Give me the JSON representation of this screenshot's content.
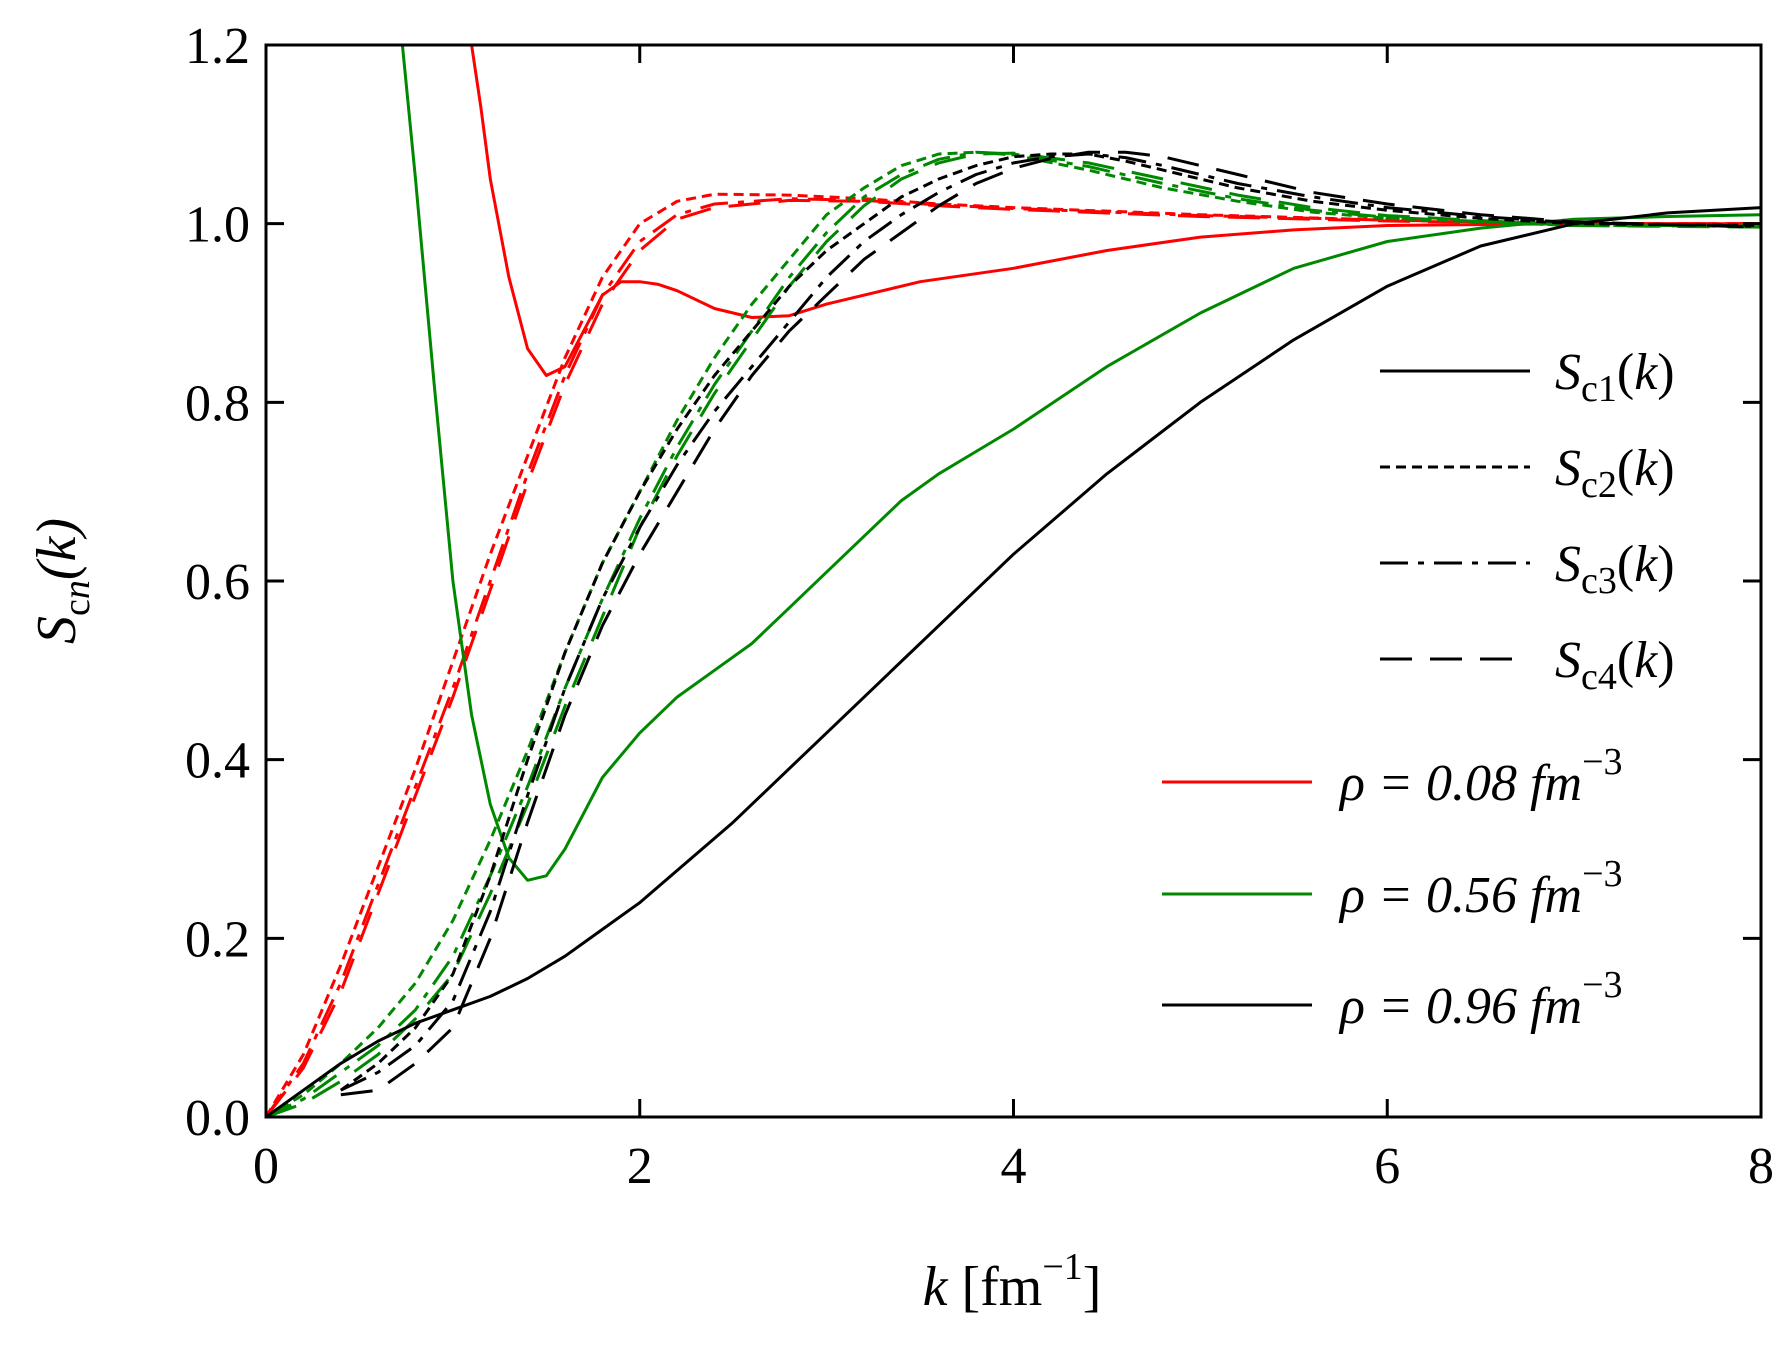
{
  "chart_data": {
    "type": "line",
    "xlim": [
      0,
      8
    ],
    "ylim": [
      0,
      1.2
    ],
    "x_ticks": [
      0,
      2,
      4,
      6,
      8
    ],
    "y_ticks": [
      0.0,
      0.2,
      0.4,
      0.6,
      0.8,
      1.0,
      1.2
    ],
    "x_tick_labels": [
      "0",
      "2",
      "4",
      "6",
      "8"
    ],
    "y_tick_labels": [
      "0.0",
      "0.2",
      "0.4",
      "0.6",
      "0.8",
      "1.0",
      "1.2"
    ],
    "xlabel": {
      "var": "k",
      "open": "[fm",
      "exp": "−1",
      "close": "]"
    },
    "ylabel": {
      "var": "S",
      "sub_roman": "c",
      "sub_italic": "n",
      "arg": "(k)"
    },
    "grid": false,
    "legend_position": "right",
    "legend": {
      "styles": [
        {
          "name": "Sc1(k)",
          "sub": "c1",
          "dash": "solid"
        },
        {
          "name": "Sc2(k)",
          "sub": "c2",
          "dash": "dot"
        },
        {
          "name": "Sc3(k)",
          "sub": "c3",
          "dash": "dashdot"
        },
        {
          "name": "Sc4(k)",
          "sub": "c4",
          "dash": "dash"
        }
      ],
      "densities": [
        {
          "label": "ρ = 0.08 fm",
          "exp": "−3",
          "color": "#ff0000"
        },
        {
          "label": "ρ = 0.56 fm",
          "exp": "−3",
          "color": "#008800"
        },
        {
          "label": "ρ = 0.96 fm",
          "exp": "−3",
          "color": "#000000"
        }
      ]
    },
    "series": [
      {
        "name": "Sc1 ρ=0.08",
        "color": "#ff0000",
        "dash": "solid",
        "x": [
          1.1,
          1.15,
          1.2,
          1.3,
          1.4,
          1.5,
          1.6,
          1.7,
          1.8,
          1.9,
          2.0,
          2.1,
          2.2,
          2.4,
          2.6,
          2.8,
          3.0,
          3.5,
          4.0,
          4.5,
          5.0,
          5.5,
          6.0,
          7.0,
          8.0
        ],
        "y": [
          1.2,
          1.13,
          1.05,
          0.94,
          0.86,
          0.83,
          0.84,
          0.88,
          0.92,
          0.935,
          0.935,
          0.932,
          0.925,
          0.905,
          0.895,
          0.897,
          0.91,
          0.935,
          0.95,
          0.97,
          0.985,
          0.993,
          0.998,
          1.0,
          1.0
        ]
      },
      {
        "name": "Sc2 ρ=0.08",
        "color": "#ff0000",
        "dash": "dot",
        "x": [
          0,
          0.2,
          0.4,
          0.6,
          0.8,
          1.0,
          1.2,
          1.4,
          1.6,
          1.8,
          2.0,
          2.2,
          2.4,
          2.8,
          3.2,
          3.6,
          4.0,
          5.0,
          6.0,
          7.0,
          8.0
        ],
        "y": [
          0,
          0.07,
          0.17,
          0.28,
          0.39,
          0.51,
          0.63,
          0.74,
          0.85,
          0.94,
          1.0,
          1.025,
          1.033,
          1.032,
          1.028,
          1.022,
          1.018,
          1.01,
          1.004,
          1.0,
          1.0
        ]
      },
      {
        "name": "Sc3 ρ=0.08",
        "color": "#ff0000",
        "dash": "dashdot",
        "x": [
          0,
          0.2,
          0.4,
          0.6,
          0.8,
          1.0,
          1.2,
          1.4,
          1.6,
          1.8,
          2.0,
          2.2,
          2.4,
          2.8,
          3.2,
          3.6,
          4.0,
          5.0,
          6.0,
          7.0,
          8.0
        ],
        "y": [
          0,
          0.06,
          0.15,
          0.26,
          0.37,
          0.48,
          0.6,
          0.72,
          0.83,
          0.92,
          0.98,
          1.01,
          1.022,
          1.028,
          1.026,
          1.021,
          1.017,
          1.009,
          1.004,
          1.0,
          1.0
        ]
      },
      {
        "name": "Sc4 ρ=0.08",
        "color": "#ff0000",
        "dash": "dash",
        "x": [
          0,
          0.2,
          0.4,
          0.6,
          0.8,
          1.0,
          1.2,
          1.4,
          1.6,
          1.8,
          2.0,
          2.2,
          2.4,
          2.8,
          3.2,
          3.6,
          4.0,
          5.0,
          6.0,
          7.0,
          8.0
        ],
        "y": [
          0,
          0.055,
          0.14,
          0.25,
          0.36,
          0.47,
          0.59,
          0.71,
          0.82,
          0.91,
          0.97,
          1.005,
          1.018,
          1.026,
          1.025,
          1.02,
          1.016,
          1.008,
          1.003,
          1.0,
          1.0
        ]
      },
      {
        "name": "Sc1 ρ=0.56",
        "color": "#008800",
        "dash": "solid",
        "x": [
          0.73,
          0.8,
          0.9,
          1.0,
          1.1,
          1.2,
          1.3,
          1.4,
          1.5,
          1.6,
          1.7,
          1.8,
          2.0,
          2.2,
          2.4,
          2.6,
          2.8,
          3.0,
          3.2,
          3.4,
          3.6,
          3.8,
          4.0,
          4.5,
          5.0,
          5.5,
          6.0,
          6.5,
          7.0,
          7.5,
          8.0
        ],
        "y": [
          1.2,
          1.05,
          0.82,
          0.6,
          0.45,
          0.35,
          0.29,
          0.265,
          0.27,
          0.3,
          0.34,
          0.38,
          0.43,
          0.47,
          0.5,
          0.53,
          0.57,
          0.61,
          0.65,
          0.69,
          0.72,
          0.745,
          0.77,
          0.84,
          0.9,
          0.95,
          0.98,
          0.995,
          1.005,
          1.008,
          1.01
        ]
      },
      {
        "name": "Sc2 ρ=0.56",
        "color": "#008800",
        "dash": "dot",
        "x": [
          0,
          0.2,
          0.4,
          0.6,
          0.8,
          1.0,
          1.2,
          1.4,
          1.6,
          1.8,
          2.0,
          2.2,
          2.4,
          2.6,
          2.8,
          3.0,
          3.2,
          3.4,
          3.6,
          3.8,
          4.0,
          4.4,
          4.8,
          5.2,
          5.6,
          6.0,
          7.0,
          8.0
        ],
        "y": [
          0,
          0.025,
          0.06,
          0.1,
          0.15,
          0.22,
          0.31,
          0.41,
          0.52,
          0.62,
          0.7,
          0.78,
          0.85,
          0.91,
          0.96,
          1.01,
          1.04,
          1.065,
          1.078,
          1.08,
          1.077,
          1.06,
          1.04,
          1.025,
          1.013,
          1.006,
          0.998,
          0.998
        ]
      },
      {
        "name": "Sc3 ρ=0.56",
        "color": "#008800",
        "dash": "dashdot",
        "x": [
          0,
          0.2,
          0.4,
          0.6,
          0.8,
          1.0,
          1.2,
          1.4,
          1.6,
          1.8,
          2.0,
          2.2,
          2.4,
          2.6,
          2.8,
          3.0,
          3.2,
          3.4,
          3.6,
          3.8,
          4.0,
          4.4,
          4.8,
          5.2,
          5.6,
          6.0,
          7.0,
          8.0
        ],
        "y": [
          0,
          0.02,
          0.05,
          0.08,
          0.12,
          0.18,
          0.27,
          0.37,
          0.48,
          0.58,
          0.67,
          0.75,
          0.82,
          0.88,
          0.94,
          0.99,
          1.03,
          1.055,
          1.072,
          1.08,
          1.078,
          1.064,
          1.045,
          1.028,
          1.015,
          1.007,
          0.998,
          0.997
        ]
      },
      {
        "name": "Sc4 ρ=0.56",
        "color": "#008800",
        "dash": "dash",
        "x": [
          0,
          0.2,
          0.4,
          0.6,
          0.8,
          1.0,
          1.2,
          1.4,
          1.6,
          1.8,
          2.0,
          2.2,
          2.4,
          2.6,
          2.8,
          3.0,
          3.2,
          3.4,
          3.6,
          3.8,
          4.0,
          4.4,
          4.8,
          5.2,
          5.6,
          6.0,
          7.0,
          8.0
        ],
        "y": [
          0,
          0.015,
          0.04,
          0.07,
          0.11,
          0.16,
          0.25,
          0.35,
          0.46,
          0.56,
          0.66,
          0.74,
          0.81,
          0.87,
          0.93,
          0.98,
          1.02,
          1.05,
          1.068,
          1.078,
          1.079,
          1.068,
          1.05,
          1.032,
          1.018,
          1.009,
          0.998,
          0.996
        ]
      },
      {
        "name": "Sc1 ρ=0.96",
        "color": "#000000",
        "dash": "solid",
        "x": [
          0,
          0.2,
          0.4,
          0.6,
          0.8,
          1.0,
          1.2,
          1.4,
          1.6,
          1.8,
          2.0,
          2.5,
          3.0,
          3.5,
          4.0,
          4.5,
          5.0,
          5.5,
          6.0,
          6.5,
          7.0,
          7.5,
          8.0
        ],
        "y": [
          0,
          0.03,
          0.06,
          0.085,
          0.105,
          0.12,
          0.135,
          0.155,
          0.18,
          0.21,
          0.24,
          0.33,
          0.43,
          0.53,
          0.63,
          0.72,
          0.8,
          0.87,
          0.93,
          0.975,
          1.0,
          1.012,
          1.018
        ]
      },
      {
        "name": "Sc2 ρ=0.96",
        "color": "#000000",
        "dash": "dot",
        "x": [
          0.4,
          0.6,
          0.8,
          1.0,
          1.2,
          1.4,
          1.6,
          1.8,
          2.0,
          2.2,
          2.4,
          2.6,
          2.8,
          3.0,
          3.2,
          3.4,
          3.6,
          3.8,
          4.0,
          4.2,
          4.4,
          4.6,
          4.8,
          5.2,
          5.6,
          6.0,
          6.5,
          7.0,
          8.0
        ],
        "y": [
          0.03,
          0.06,
          0.1,
          0.16,
          0.27,
          0.4,
          0.52,
          0.62,
          0.7,
          0.77,
          0.83,
          0.88,
          0.93,
          0.97,
          1.0,
          1.03,
          1.05,
          1.065,
          1.075,
          1.078,
          1.078,
          1.07,
          1.06,
          1.04,
          1.025,
          1.015,
          1.006,
          1.0,
          0.998
        ]
      },
      {
        "name": "Sc3 ρ=0.96",
        "color": "#000000",
        "dash": "dashdot",
        "x": [
          0.4,
          0.6,
          0.8,
          1.0,
          1.2,
          1.4,
          1.6,
          1.8,
          2.0,
          2.2,
          2.4,
          2.6,
          2.8,
          3.0,
          3.2,
          3.4,
          3.6,
          3.8,
          4.0,
          4.2,
          4.4,
          4.6,
          4.8,
          5.2,
          5.6,
          6.0,
          6.5,
          7.0,
          8.0
        ],
        "y": [
          0.03,
          0.05,
          0.08,
          0.13,
          0.23,
          0.36,
          0.48,
          0.58,
          0.66,
          0.73,
          0.79,
          0.84,
          0.89,
          0.94,
          0.98,
          1.01,
          1.035,
          1.055,
          1.068,
          1.075,
          1.078,
          1.074,
          1.065,
          1.045,
          1.03,
          1.018,
          1.008,
          1.001,
          0.997
        ]
      },
      {
        "name": "Sc4 ρ=0.96",
        "color": "#000000",
        "dash": "dash",
        "x": [
          0.4,
          0.6,
          0.8,
          1.0,
          1.2,
          1.4,
          1.6,
          1.8,
          2.0,
          2.2,
          2.4,
          2.6,
          2.8,
          3.0,
          3.2,
          3.4,
          3.6,
          3.8,
          4.0,
          4.2,
          4.4,
          4.6,
          4.8,
          5.2,
          5.6,
          6.0,
          6.5,
          7.0,
          8.0
        ],
        "y": [
          0.025,
          0.03,
          0.06,
          0.1,
          0.2,
          0.33,
          0.45,
          0.55,
          0.63,
          0.7,
          0.77,
          0.83,
          0.88,
          0.92,
          0.96,
          0.99,
          1.02,
          1.045,
          1.062,
          1.073,
          1.08,
          1.08,
          1.075,
          1.055,
          1.035,
          1.022,
          1.01,
          1.002,
          0.996
        ]
      }
    ]
  }
}
